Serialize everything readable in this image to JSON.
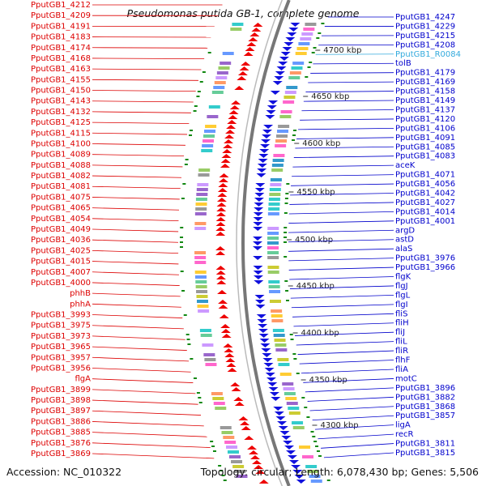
{
  "title": "Pseudomonas putida GB-1, complete genome",
  "footer": {
    "accession": "Accession: NC_010322",
    "info": "Topology: circular; Length: 6,078,430 bp; Genes: 5,506"
  },
  "colors": {
    "left_labels": "#dd0000",
    "right_labels": "#0000cc",
    "rna_label": "#33aadd",
    "forward_genes": "#ee0000",
    "reverse_genes": "#1111dd",
    "backbone": "#777777",
    "gc_marks": "#118811"
  },
  "scale_ticks": [
    "4700 kbp",
    "4650 kbp",
    "4600 kbp",
    "4550 kbp",
    "4500 kbp",
    "4450 kbp",
    "4400 kbp",
    "4350 kbp",
    "4300 kbp"
  ],
  "left_labels": [
    "PputGB1_4212",
    "PputGB1_4209",
    "PputGB1_4191",
    "PputGB1_4183",
    "PputGB1_4174",
    "PputGB1_4168",
    "PputGB1_4163",
    "PputGB1_4155",
    "PputGB1_4150",
    "PputGB1_4143",
    "PputGB1_4132",
    "PputGB1_4125",
    "PputGB1_4115",
    "PputGB1_4100",
    "PputGB1_4089",
    "PputGB1_4088",
    "PputGB1_4082",
    "PputGB1_4081",
    "PputGB1_4075",
    "PputGB1_4065",
    "PputGB1_4054",
    "PputGB1_4049",
    "PputGB1_4036",
    "PputGB1_4025",
    "PputGB1_4015",
    "PputGB1_4007",
    "PputGB1_4000",
    "phhB",
    "phhA",
    "PputGB1_3993",
    "PputGB1_3975",
    "PputGB1_3973",
    "PputGB1_3965",
    "PputGB1_3957",
    "PputGB1_3956",
    "flgA",
    "PputGB1_3899",
    "PputGB1_3898",
    "PputGB1_3897",
    "PputGB1_3886",
    "PputGB1_3885",
    "PputGB1_3876",
    "PputGB1_3869"
  ],
  "right_labels": [
    "PputGB1_4247",
    "PputGB1_4229",
    "PputGB1_4215",
    "PputGB1_4208",
    "PputGB1_R0084",
    "tolB",
    "PputGB1_4179",
    "PputGB1_4169",
    "PputGB1_4158",
    "PputGB1_4149",
    "PputGB1_4137",
    "PputGB1_4120",
    "PputGB1_4106",
    "PputGB1_4091",
    "PputGB1_4085",
    "PputGB1_4083",
    "aceK",
    "PputGB1_4071",
    "PputGB1_4056",
    "PputGB1_4042",
    "PputGB1_4027",
    "PputGB1_4014",
    "PputGB1_4001",
    "argD",
    "astD",
    "alaS",
    "PputGB1_3976",
    "PputGB1_3966",
    "flgK",
    "flgJ",
    "flgL",
    "flgI",
    "fliS",
    "fliH",
    "fliJ",
    "fliL",
    "fliR",
    "flhF",
    "fliA",
    "motC",
    "PputGB1_3896",
    "PputGB1_3882",
    "PputGB1_3868",
    "PputGB1_3857",
    "ligA",
    "recR",
    "PputGB1_3811",
    "PputGB1_3815"
  ]
}
